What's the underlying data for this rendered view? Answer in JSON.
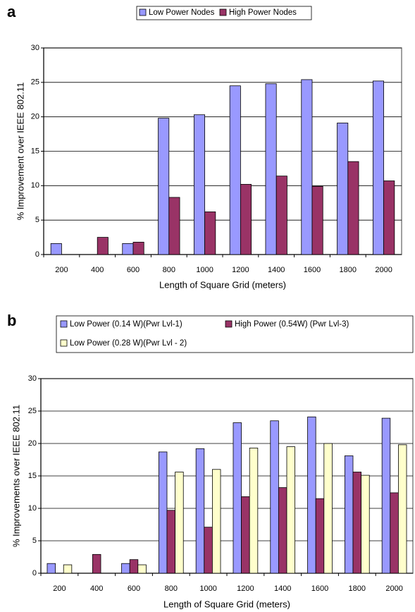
{
  "chart_data": [
    {
      "type": "bar",
      "panel": "a",
      "x_label": "Length of Square Grid (meters)",
      "y_label": "% Improvement over IEEE 802.11",
      "categories": [
        "200",
        "400",
        "600",
        "800",
        "1000",
        "1200",
        "1400",
        "1600",
        "1800",
        "2000"
      ],
      "series": [
        {
          "name": "Low Power Nodes",
          "color": "#9999ff",
          "values": [
            1.6,
            null,
            1.6,
            19.8,
            20.3,
            24.5,
            24.8,
            25.4,
            19.1,
            25.2
          ]
        },
        {
          "name": "High Power Nodes",
          "color": "#993366",
          "values": [
            null,
            2.5,
            1.8,
            8.3,
            6.2,
            10.2,
            11.4,
            9.9,
            13.5,
            10.7
          ]
        }
      ],
      "ylim": [
        0,
        30
      ],
      "yticks": [
        0,
        5,
        10,
        15,
        20,
        25,
        30
      ],
      "grid": true,
      "legend": "top"
    },
    {
      "type": "bar",
      "panel": "b",
      "x_label": "Length of Square Grid (meters)",
      "y_label": "% Improvements over IEEE 802.11",
      "categories": [
        "200",
        "400",
        "600",
        "800",
        "1000",
        "1200",
        "1400",
        "1600",
        "1800",
        "2000"
      ],
      "series": [
        {
          "name": "Low Power (0.14 W)(Pwr Lvl-1)",
          "color": "#9999ff",
          "values": [
            1.5,
            null,
            1.5,
            18.7,
            19.2,
            23.2,
            23.5,
            24.1,
            18.1,
            23.9
          ]
        },
        {
          "name": "High Power (0.54W) (Pwr Lvl-3)",
          "color": "#993366",
          "values": [
            null,
            2.9,
            2.1,
            9.7,
            7.1,
            11.8,
            13.2,
            11.5,
            15.6,
            12.4
          ]
        },
        {
          "name": "Low Power (0.28 W)(Pwr Lvl - 2)",
          "color": "#ffffcc",
          "values": [
            1.3,
            null,
            1.3,
            15.6,
            16.0,
            19.3,
            19.5,
            20.0,
            15.1,
            19.8
          ]
        }
      ],
      "ylim": [
        0,
        30
      ],
      "yticks": [
        0,
        5,
        10,
        15,
        20,
        25,
        30
      ],
      "grid": true,
      "legend": "top"
    }
  ]
}
